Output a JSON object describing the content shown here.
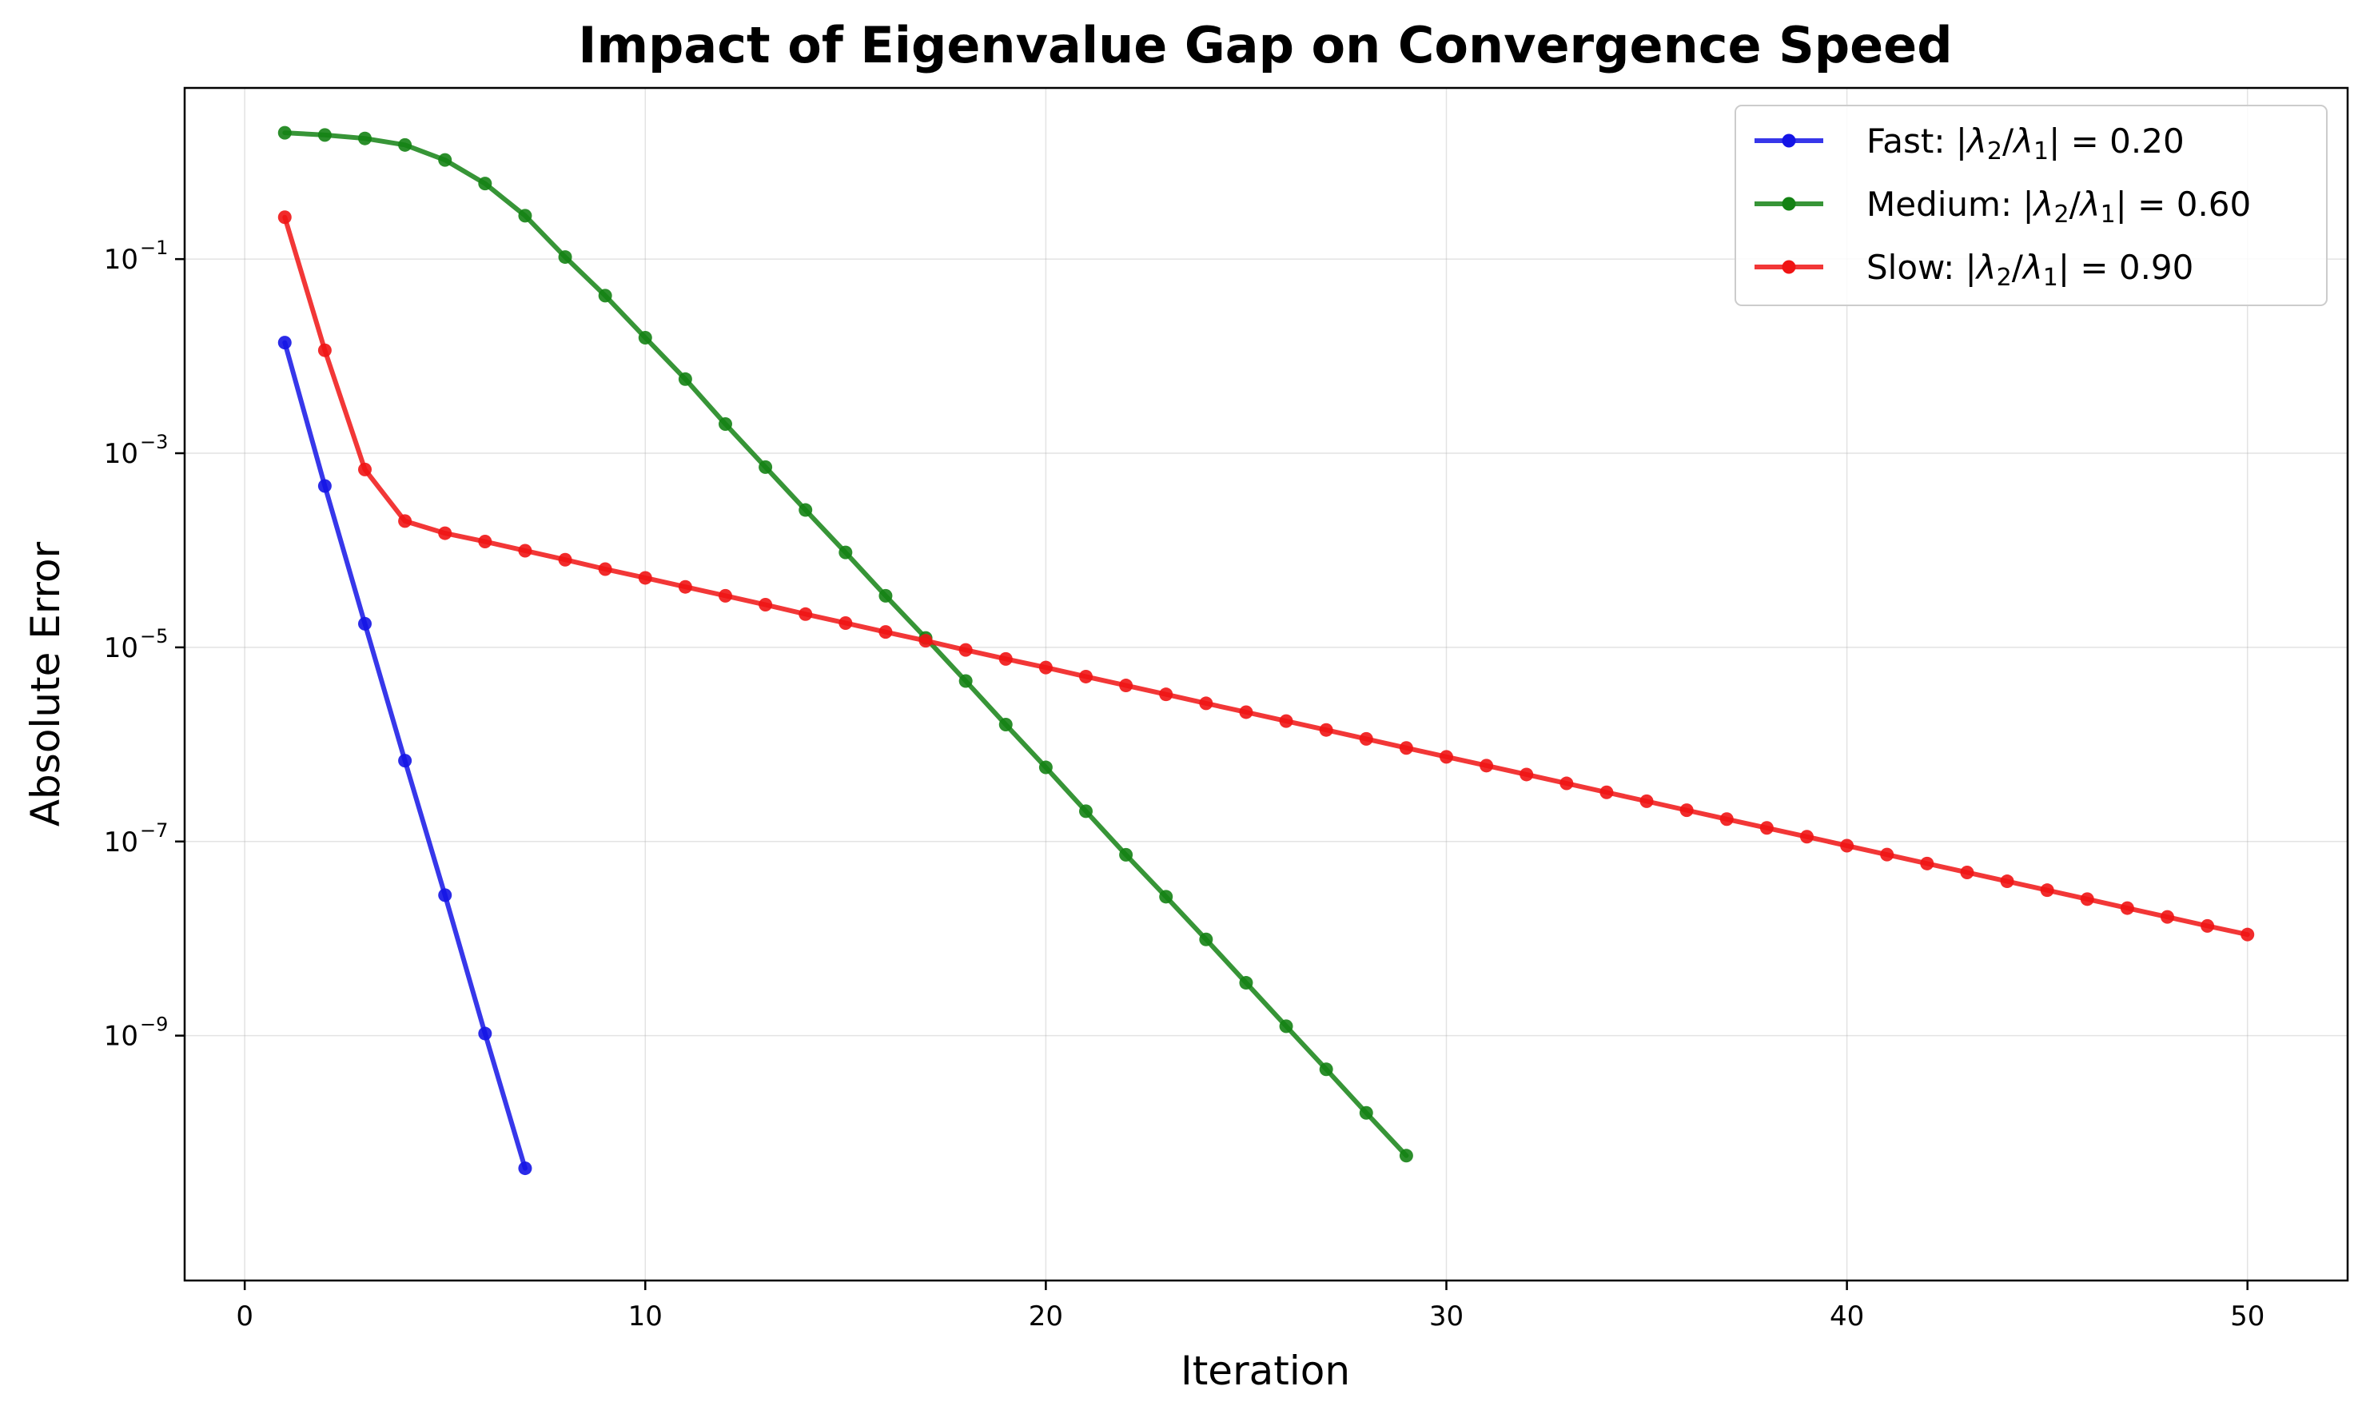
{
  "chart_data": {
    "type": "line",
    "title": "Impact of Eigenvalue Gap on Convergence Speed",
    "xlabel": "Iteration",
    "ylabel": "Absolute Error",
    "xlim": [
      -1.5,
      52.5
    ],
    "ylim": [
      3e-12,
      5.8
    ],
    "yscale": "log",
    "grid": true,
    "legend_position": "top-right",
    "x_ticks": [
      0,
      10,
      20,
      30,
      40,
      50
    ],
    "y_ticks": [
      {
        "value": 1e-09,
        "mantissa": "10",
        "exponent": "−9"
      },
      {
        "value": 1e-07,
        "mantissa": "10",
        "exponent": "−7"
      },
      {
        "value": 1e-05,
        "mantissa": "10",
        "exponent": "−5"
      },
      {
        "value": 0.001,
        "mantissa": "10",
        "exponent": "−3"
      },
      {
        "value": 0.1,
        "mantissa": "10",
        "exponent": "−1"
      }
    ],
    "series": [
      {
        "name": "Fast: |λ2/λ1| = 0.20",
        "legend_prefix": "Fast: ",
        "ratio_text": "0.20",
        "color": "#1414e6",
        "x": [
          1,
          2,
          3,
          4,
          5,
          6,
          7
        ],
        "y": [
          0.0138,
          0.00046,
          1.75e-05,
          6.8e-07,
          2.8e-08,
          1.05e-09,
          4.3e-11
        ]
      },
      {
        "name": "Medium: |λ2/λ1| = 0.60",
        "legend_prefix": "Medium: ",
        "ratio_text": "0.60",
        "color": "#148214",
        "x": [
          1,
          2,
          3,
          4,
          5,
          6,
          7,
          8,
          9,
          10,
          11,
          12,
          13,
          14,
          15,
          16,
          17,
          18,
          19,
          20,
          21,
          22,
          23,
          24,
          25,
          26,
          27,
          28,
          29
        ],
        "y": [
          2.0,
          1.9,
          1.75,
          1.5,
          1.05,
          0.6,
          0.28,
          0.105,
          0.042,
          0.0155,
          0.0058,
          0.002,
          0.00072,
          0.00026,
          9.5e-05,
          3.4e-05,
          1.25e-05,
          4.5e-06,
          1.6e-06,
          5.8e-07,
          2.05e-07,
          7.3e-08,
          2.7e-08,
          9.8e-09,
          3.5e-09,
          1.25e-09,
          4.5e-10,
          1.6e-10,
          5.8e-11
        ]
      },
      {
        "name": "Slow: |λ2/λ1| = 0.90",
        "legend_prefix": "Slow: ",
        "ratio_text": "0.90",
        "color": "#f01414",
        "x": [
          1,
          2,
          3,
          4,
          5,
          6,
          7,
          8,
          9,
          10,
          11,
          12,
          13,
          14,
          15,
          16,
          17,
          18,
          19,
          20,
          21,
          22,
          23,
          24,
          25,
          26,
          27,
          28,
          29,
          30,
          31,
          32,
          33,
          34,
          35,
          36,
          37,
          38,
          39,
          40,
          41,
          42,
          43,
          44,
          45,
          46,
          47,
          48,
          49,
          50
        ],
        "y": [
          0.27,
          0.0115,
          0.00068,
          0.0002,
          0.00015,
          0.000123,
          9.9e-05,
          8e-05,
          6.4e-05,
          5.2e-05,
          4.2e-05,
          3.4e-05,
          2.75e-05,
          2.2e-05,
          1.78e-05,
          1.44e-05,
          1.17e-05,
          9.4e-06,
          7.6e-06,
          6.2e-06,
          5e-06,
          4.05e-06,
          3.28e-06,
          2.65e-06,
          2.15e-06,
          1.74e-06,
          1.41e-06,
          1.14e-06,
          9.2e-07,
          7.45e-07,
          6.05e-07,
          4.9e-07,
          3.97e-07,
          3.21e-07,
          2.6e-07,
          2.1e-07,
          1.7e-07,
          1.38e-07,
          1.12e-07,
          9.05e-08,
          7.33e-08,
          5.93e-08,
          4.8e-08,
          3.89e-08,
          3.15e-08,
          2.55e-08,
          2.06e-08,
          1.67e-08,
          1.35e-08,
          1.1e-08
        ]
      }
    ]
  }
}
